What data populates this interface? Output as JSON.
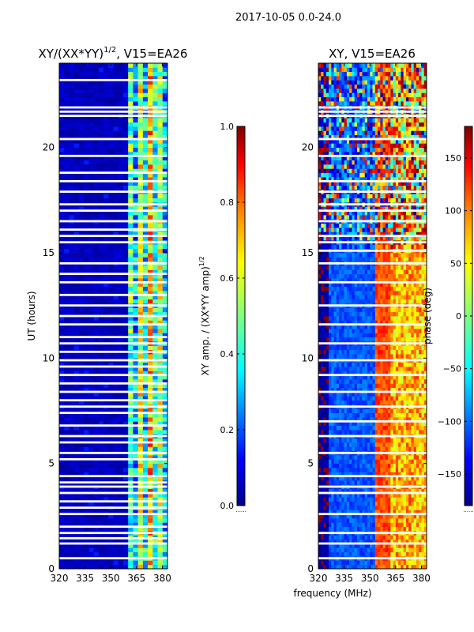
{
  "suptitle": "2017-10-05 0.0-24.0",
  "xlabel_shared": "frequency (MHz)",
  "colors": {
    "jet_dark_blue": "#00008b",
    "jet_blue": "#0000ff",
    "jet_cyan": "#00ffff",
    "jet_green": "#7fff7f",
    "jet_yellow": "#ffff00",
    "jet_orange": "#ff8000",
    "jet_red": "#ff0000",
    "jet_dark_red": "#800000",
    "gap": "#ffffff"
  },
  "chart_data": [
    {
      "type": "heatmap",
      "title_main": "XY/(XX*YY)",
      "title_sup": "1/2",
      "title_tail": ", V15=EA26",
      "xlabel": "",
      "ylabel": "UT (hours)",
      "xlim": [
        320,
        383
      ],
      "ylim": [
        0,
        24
      ],
      "xticks": [
        320,
        335,
        350,
        365,
        380
      ],
      "yticks": [
        0,
        5,
        10,
        15,
        20
      ],
      "colorbar": {
        "label_main": "XY amp. / (XX*YY amp)",
        "label_sup": "1/2",
        "range": [
          0.0,
          1.0
        ],
        "ticks": [
          "0.0",
          "0.2",
          "0.4",
          "0.6",
          "0.8",
          "1.0"
        ],
        "tick_values": [
          0.0,
          0.2,
          0.4,
          0.6,
          0.8,
          1.0
        ]
      },
      "gap_hours": [
        0.5,
        1.2,
        1.45,
        1.7,
        2.0,
        2.6,
        2.9,
        3.2,
        3.6,
        3.9,
        4.1,
        4.4,
        5.2,
        5.5,
        6.0,
        6.3,
        6.8,
        7.4,
        7.7,
        8.0,
        8.4,
        8.8,
        9.2,
        9.6,
        9.9,
        10.3,
        10.7,
        11.0,
        11.6,
        12.0,
        12.5,
        13.0,
        13.6,
        14.0,
        14.5,
        15.5,
        15.8,
        16.1,
        16.5,
        17.0,
        17.3,
        17.9,
        18.4,
        18.8,
        19.6,
        20.4,
        21.5,
        21.7,
        21.9,
        23.2
      ],
      "notes": "background amplitude near 0.05 below 360 MHz; bands of 0.3-0.9 between 360 and 383 MHz"
    },
    {
      "type": "heatmap",
      "title_main": "XY, V15=EA26",
      "xlabel": "frequency (MHz)",
      "ylabel": "",
      "xlim": [
        320,
        383
      ],
      "ylim": [
        0,
        24
      ],
      "xticks": [
        320,
        335,
        350,
        365,
        380
      ],
      "yticks": [
        0,
        5,
        10,
        15,
        20
      ],
      "colorbar": {
        "label_main": "phase (deg)",
        "range": [
          -180,
          180
        ],
        "ticks": [
          "150",
          "100",
          "50",
          "0",
          "−50",
          "−100",
          "−150"
        ],
        "tick_values": [
          150,
          100,
          50,
          0,
          -50,
          -100,
          -150
        ]
      },
      "gap_hours": [
        0.5,
        1.2,
        1.7,
        2.6,
        3.6,
        3.9,
        4.4,
        5.5,
        6.3,
        7.0,
        7.7,
        8.4,
        9.2,
        9.9,
        10.7,
        11.6,
        12.5,
        13.6,
        14.5,
        15.1,
        15.5,
        15.8,
        16.5,
        17.0,
        17.3,
        17.9,
        18.4,
        19.6,
        20.4,
        21.5,
        21.7,
        21.9
      ],
      "notes": "phase ~ -180 near 320 MHz, ~ -100 at 335-350 MHz, ~ +120 near 360 MHz, mixed 0..180 at 365-383 MHz; noisier above 15 h"
    }
  ]
}
